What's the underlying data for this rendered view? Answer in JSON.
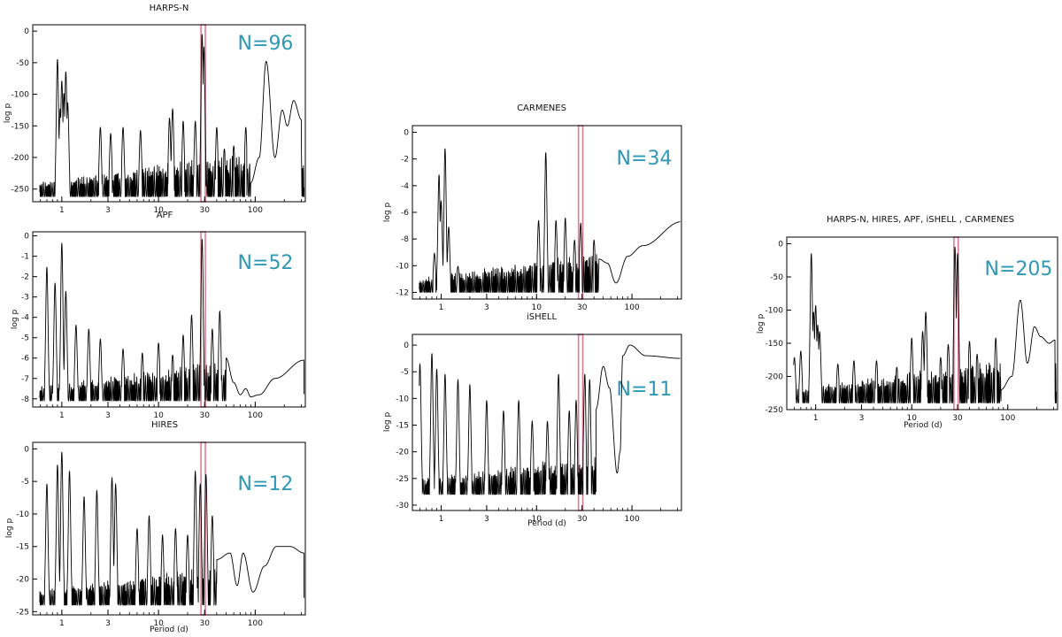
{
  "chart_data": [
    {
      "id": "harpsn",
      "type": "line",
      "title": "HARPS-N",
      "count_label": "N=96",
      "xlabel": "",
      "ylabel": "log p",
      "xscale": "log",
      "xlim": [
        0.5,
        330
      ],
      "ylim": [
        -270,
        10
      ],
      "xticks": [
        1,
        3,
        10,
        30,
        100
      ],
      "yticks": [
        0,
        -50,
        -100,
        -150,
        -200,
        -250
      ],
      "floor": -262,
      "highlight_band": [
        27.5,
        30.5
      ],
      "peaks": [
        [
          0.9,
          -40
        ],
        [
          0.96,
          -120
        ],
        [
          1.0,
          -75
        ],
        [
          1.05,
          -95
        ],
        [
          1.1,
          -60
        ],
        [
          1.15,
          -110
        ],
        [
          2.5,
          -150
        ],
        [
          3.2,
          -160
        ],
        [
          4.3,
          -150
        ],
        [
          6.5,
          -155
        ],
        [
          13,
          -135
        ],
        [
          14,
          -120
        ],
        [
          18,
          -140
        ],
        [
          24,
          -140
        ],
        [
          28.2,
          0
        ],
        [
          29.5,
          -20
        ],
        [
          40,
          -150
        ],
        [
          48,
          -185
        ],
        [
          60,
          -180
        ],
        [
          80,
          -150
        ],
        [
          130,
          -48
        ],
        [
          200,
          -125
        ],
        [
          250,
          -110
        ]
      ],
      "tail": [
        [
          90,
          -240
        ],
        [
          110,
          -200
        ],
        [
          130,
          -48
        ],
        [
          160,
          -200
        ],
        [
          190,
          -125
        ],
        [
          215,
          -150
        ],
        [
          250,
          -110
        ],
        [
          300,
          -140
        ]
      ]
    },
    {
      "id": "apf",
      "type": "line",
      "title": "APF",
      "count_label": "N=52",
      "xlabel": "",
      "ylabel": "log p",
      "xscale": "log",
      "xlim": [
        0.5,
        330
      ],
      "ylim": [
        -8.4,
        0.2
      ],
      "xticks": [
        1,
        3,
        10,
        30,
        100
      ],
      "yticks": [
        0,
        -1,
        -2,
        -3,
        -4,
        -5,
        -6,
        -7,
        -8
      ],
      "floor": -8.1,
      "highlight_band": [
        27.5,
        30.5
      ],
      "peaks": [
        [
          0.7,
          -1.4
        ],
        [
          0.85,
          -2.2
        ],
        [
          1.0,
          -0.2
        ],
        [
          1.1,
          -2.6
        ],
        [
          1.4,
          -4.3
        ],
        [
          1.9,
          -4.5
        ],
        [
          2.5,
          -5.0
        ],
        [
          4.3,
          -5.5
        ],
        [
          6.8,
          -5.7
        ],
        [
          10,
          -5.2
        ],
        [
          14,
          -5.8
        ],
        [
          18,
          -4.8
        ],
        [
          22,
          -3.8
        ],
        [
          28.2,
          0
        ],
        [
          36,
          -4.5
        ],
        [
          43,
          -3.6
        ]
      ],
      "tail": [
        [
          50,
          -6.0
        ],
        [
          60,
          -7.2
        ],
        [
          70,
          -7.8
        ],
        [
          80,
          -7.5
        ],
        [
          90,
          -7.9
        ],
        [
          110,
          -7.8
        ],
        [
          160,
          -7.0
        ],
        [
          320,
          -6.1
        ]
      ]
    },
    {
      "id": "hires",
      "type": "line",
      "title": "HIRES",
      "count_label": "N=12",
      "xlabel": "Period (d)",
      "ylabel": "log p",
      "xscale": "log",
      "xlim": [
        0.5,
        330
      ],
      "ylim": [
        -25.5,
        1
      ],
      "xticks": [
        1,
        3,
        10,
        30,
        100
      ],
      "yticks": [
        0,
        -5,
        -10,
        -15,
        -20,
        -25
      ],
      "floor": -24,
      "highlight_band": [
        27.5,
        30.5
      ],
      "peaks": [
        [
          0.7,
          -5
        ],
        [
          0.9,
          -2
        ],
        [
          1.0,
          0
        ],
        [
          1.2,
          -3
        ],
        [
          1.7,
          -7
        ],
        [
          2.3,
          -6
        ],
        [
          3.3,
          -4
        ],
        [
          3.6,
          -5
        ],
        [
          6.0,
          -12
        ],
        [
          8.0,
          -10
        ],
        [
          11,
          -13
        ],
        [
          15,
          -12
        ],
        [
          20,
          -13
        ],
        [
          24,
          -3
        ],
        [
          27,
          -5
        ],
        [
          31,
          -3.5
        ],
        [
          36,
          -10
        ]
      ],
      "tail": [
        [
          40,
          -17
        ],
        [
          55,
          -16
        ],
        [
          65,
          -21
        ],
        [
          75,
          -16
        ],
        [
          95,
          -22
        ],
        [
          125,
          -18
        ],
        [
          165,
          -15
        ],
        [
          230,
          -15
        ],
        [
          320,
          -16
        ]
      ]
    },
    {
      "id": "carmenes",
      "type": "line",
      "title": "CARMENES",
      "count_label": "N=34",
      "xlabel": "",
      "ylabel": "log p",
      "xscale": "log",
      "xlim": [
        0.5,
        330
      ],
      "ylim": [
        -12.5,
        0.5
      ],
      "xticks": [
        1,
        3,
        10,
        30,
        100
      ],
      "yticks": [
        0,
        -2,
        -4,
        -6,
        -8,
        -10,
        -12
      ],
      "floor": -12,
      "highlight_band": [
        27.5,
        30.5
      ],
      "peaks": [
        [
          0.85,
          -9
        ],
        [
          0.95,
          -3
        ],
        [
          1.0,
          -5
        ],
        [
          1.1,
          -1
        ],
        [
          1.2,
          -7
        ],
        [
          1.5,
          -10
        ],
        [
          2.2,
          -10.5
        ],
        [
          3.5,
          -10.5
        ],
        [
          5.0,
          -10
        ],
        [
          6.5,
          -10
        ],
        [
          10.5,
          -6.5
        ],
        [
          12.5,
          -1.3
        ],
        [
          16,
          -6.5
        ],
        [
          20,
          -6.3
        ],
        [
          25,
          -8
        ],
        [
          29,
          -6.7
        ],
        [
          40,
          -8
        ]
      ],
      "tail": [
        [
          45,
          -9.5
        ],
        [
          55,
          -9.8
        ],
        [
          68,
          -11.3
        ],
        [
          90,
          -9.3
        ],
        [
          130,
          -8.5
        ],
        [
          330,
          -6.7
        ]
      ]
    },
    {
      "id": "ishell",
      "type": "line",
      "title": "iSHELL",
      "count_label": "N=11",
      "xlabel": "Period (d)",
      "ylabel": "log p",
      "xscale": "log",
      "xlim": [
        0.5,
        330
      ],
      "ylim": [
        -31,
        2
      ],
      "xticks": [
        1,
        3,
        10,
        30,
        100
      ],
      "yticks": [
        0,
        -5,
        -10,
        -15,
        -20,
        -25,
        -30
      ],
      "floor": -28,
      "highlight_band": [
        27.5,
        30.5
      ],
      "peaks": [
        [
          0.6,
          -3
        ],
        [
          0.8,
          -1
        ],
        [
          0.9,
          -4
        ],
        [
          1.1,
          -5
        ],
        [
          1.5,
          -6
        ],
        [
          2.0,
          -7
        ],
        [
          3.0,
          -10
        ],
        [
          4.5,
          -12
        ],
        [
          6.5,
          -10
        ],
        [
          9.0,
          -14
        ],
        [
          13,
          -14
        ],
        [
          17,
          -5
        ],
        [
          22,
          -12
        ],
        [
          26,
          -10
        ],
        [
          32,
          -5
        ],
        [
          36,
          -6
        ]
      ],
      "tail": [
        [
          42,
          -12
        ],
        [
          50,
          -4
        ],
        [
          58,
          -8
        ],
        [
          70,
          -24
        ],
        [
          75,
          -20
        ],
        [
          80,
          -2
        ],
        [
          95,
          0
        ],
        [
          140,
          -2
        ],
        [
          330,
          -2.5
        ]
      ]
    },
    {
      "id": "combined",
      "type": "line",
      "title": "HARPS-N, HIRES, APF, iSHELL , CARMENES",
      "count_label": "N=205",
      "xlabel": "Period (d)",
      "ylabel": "log p",
      "xscale": "log",
      "xlim": [
        0.5,
        330
      ],
      "ylim": [
        -250,
        10
      ],
      "xticks": [
        1,
        3,
        10,
        30,
        100
      ],
      "yticks": [
        0,
        -50,
        -100,
        -150,
        -200,
        -250
      ],
      "floor": -240,
      "highlight_band": [
        27.5,
        30.5
      ],
      "peaks": [
        [
          0.6,
          -170
        ],
        [
          0.7,
          -160
        ],
        [
          0.9,
          -10
        ],
        [
          0.95,
          -100
        ],
        [
          1.0,
          -90
        ],
        [
          1.05,
          -120
        ],
        [
          1.1,
          -130
        ],
        [
          1.7,
          -180
        ],
        [
          2.5,
          -175
        ],
        [
          4.3,
          -175
        ],
        [
          7,
          -185
        ],
        [
          10,
          -140
        ],
        [
          13,
          -130
        ],
        [
          14,
          -100
        ],
        [
          20,
          -170
        ],
        [
          24,
          -150
        ],
        [
          28.2,
          0
        ],
        [
          30,
          -10
        ],
        [
          40,
          -145
        ],
        [
          48,
          -165
        ],
        [
          60,
          -180
        ],
        [
          75,
          -140
        ]
      ],
      "tail": [
        [
          85,
          -220
        ],
        [
          110,
          -200
        ],
        [
          135,
          -85
        ],
        [
          160,
          -180
        ],
        [
          190,
          -125
        ],
        [
          220,
          -140
        ],
        [
          270,
          -150
        ],
        [
          310,
          -145
        ]
      ]
    }
  ]
}
